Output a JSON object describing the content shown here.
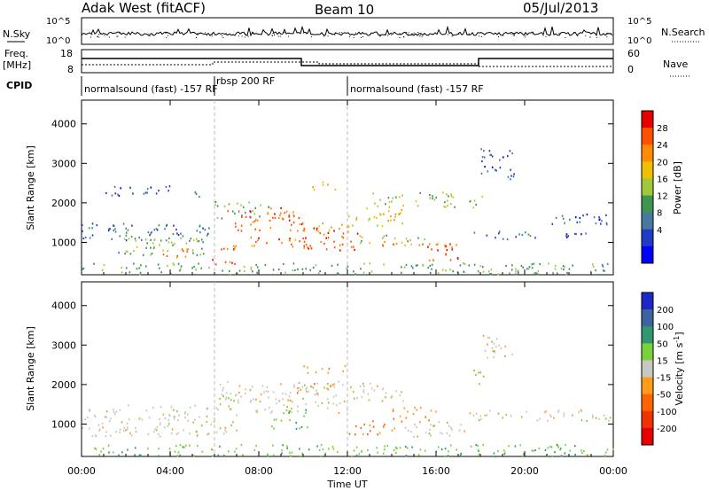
{
  "header": {
    "station": "Adak West (fitACF)",
    "beam": "Beam 10",
    "date": "05/Jul/2013"
  },
  "nsky_panel": {
    "left_label": "N.Sky",
    "left_ticks": [
      "10^5",
      "10^0"
    ],
    "right_ticks": [
      "10^5",
      "10^0"
    ],
    "right_label": "N.Search"
  },
  "freq_panel": {
    "left_label_1": "Freq.",
    "left_label_2": "[MHz]",
    "left_ticks": [
      "18",
      "8"
    ],
    "right_ticks": [
      "60",
      "0"
    ],
    "right_label": "Nave"
  },
  "cpid": {
    "label": "CPID",
    "segments": [
      {
        "text": "normalsound (fast) -157 RF",
        "start_hour": 0,
        "end_hour": 6
      },
      {
        "text": "rbsp 200 RF",
        "start_hour": 6,
        "end_hour": 12
      },
      {
        "text": "normalsound (fast) -157 RF",
        "start_hour": 12,
        "end_hour": 24
      }
    ]
  },
  "colorbars": {
    "power": {
      "label": "Power [dB]",
      "ticks": [
        "28",
        "24",
        "20",
        "16",
        "12",
        "8",
        "4"
      ],
      "colors": [
        "#e60000",
        "#ff5000",
        "#ff8c00",
        "#f0c000",
        "#a0c83c",
        "#3c9650",
        "#4678a0",
        "#1e3cc8",
        "#0000ff"
      ]
    },
    "velocity": {
      "label": "Velocity [m s^-1]",
      "ticks": [
        "200",
        "100",
        "50",
        "15",
        "-15",
        "-50",
        "-100",
        "-200"
      ],
      "colors": [
        "#1e28c8",
        "#3c64a0",
        "#32966e",
        "#78d23c",
        "#c8c8c0",
        "#ff9c1e",
        "#ff6400",
        "#f03200",
        "#e60000"
      ]
    }
  },
  "chart_data": [
    {
      "type": "heatmap",
      "name": "power",
      "ylabel": "Slant Range [km]",
      "x_unit": "hour UT",
      "ylim": [
        180,
        4600
      ],
      "yticks": [
        1000,
        2000,
        3000,
        4000
      ],
      "blobs": [
        {
          "h0": 0.0,
          "h1": 6.0,
          "r0": 1000,
          "r1": 1500,
          "p": 8
        },
        {
          "h0": 1.5,
          "h1": 5.5,
          "r0": 700,
          "r1": 1150,
          "p": 14
        },
        {
          "h0": 3.5,
          "h1": 4.8,
          "r0": 600,
          "r1": 950,
          "p": 26
        },
        {
          "h0": 5.8,
          "h1": 7.0,
          "r0": 450,
          "r1": 950,
          "p": 28
        },
        {
          "h0": 6.0,
          "h1": 8.5,
          "r0": 1600,
          "r1": 2050,
          "p": 14
        },
        {
          "h0": 6.5,
          "h1": 10.0,
          "r0": 1300,
          "r1": 1900,
          "p": 28
        },
        {
          "h0": 7.5,
          "h1": 10.5,
          "r0": 850,
          "r1": 1150,
          "p": 26
        },
        {
          "h0": 9.5,
          "h1": 12.0,
          "r0": 1300,
          "r1": 1550,
          "p": 24
        },
        {
          "h0": 10.0,
          "h1": 12.5,
          "r0": 800,
          "r1": 1400,
          "p": 28
        },
        {
          "h0": 10.2,
          "h1": 11.5,
          "r0": 2350,
          "r1": 2550,
          "p": 24
        },
        {
          "h0": 12.0,
          "h1": 14.5,
          "r0": 1400,
          "r1": 1900,
          "p": 20
        },
        {
          "h0": 13.0,
          "h1": 17.0,
          "r0": 1900,
          "r1": 2300,
          "p": 16
        },
        {
          "h0": 12.5,
          "h1": 15.5,
          "r0": 950,
          "r1": 1200,
          "p": 16
        },
        {
          "h0": 15.5,
          "h1": 17.2,
          "r0": 550,
          "r1": 950,
          "p": 28
        },
        {
          "h0": 13.0,
          "h1": 17.5,
          "r0": 900,
          "r1": 1050,
          "p": 24
        },
        {
          "h0": 17.5,
          "h1": 20.5,
          "r0": 1100,
          "r1": 1300,
          "p": 8
        },
        {
          "h0": 19.5,
          "h1": 23.5,
          "r0": 1150,
          "r1": 1250,
          "p": 5
        },
        {
          "h0": 20.5,
          "h1": 23.8,
          "r0": 1450,
          "r1": 1750,
          "p": 6
        },
        {
          "h0": 17.5,
          "h1": 18.2,
          "r0": 1900,
          "r1": 2300,
          "p": 14
        },
        {
          "h0": 18.0,
          "h1": 19.5,
          "r0": 2600,
          "r1": 3400,
          "p": 5
        },
        {
          "h0": 1.0,
          "h1": 4.0,
          "r0": 2200,
          "r1": 2500,
          "p": 6
        },
        {
          "h0": 5.0,
          "h1": 5.5,
          "r0": 2150,
          "r1": 2500,
          "p": 10
        },
        {
          "h0": 0.0,
          "h1": 24.0,
          "r0": 200,
          "r1": 500,
          "p": 12
        }
      ]
    },
    {
      "type": "heatmap",
      "name": "velocity",
      "ylabel": "Slant Range [km]",
      "xlabel": "Time UT",
      "x_unit": "hour UT",
      "xticks": [
        "00:00",
        "04:00",
        "08:00",
        "12:00",
        "16:00",
        "20:00",
        "00:00"
      ],
      "ylim": [
        180,
        4600
      ],
      "yticks": [
        1000,
        2000,
        3000,
        4000
      ],
      "blobs": [
        {
          "h0": 0.0,
          "h1": 7.0,
          "r0": 700,
          "r1": 1500,
          "v": 0
        },
        {
          "h0": 6.0,
          "h1": 12.0,
          "r0": 1300,
          "r1": 2100,
          "v": 0
        },
        {
          "h0": 8.5,
          "h1": 10.2,
          "r0": 900,
          "r1": 1400,
          "v": 40
        },
        {
          "h0": 10.0,
          "h1": 12.0,
          "r0": 2300,
          "r1": 2500,
          "v": -40
        },
        {
          "h0": 9.5,
          "h1": 11.5,
          "r0": 1800,
          "r1": 2050,
          "v": -40
        },
        {
          "h0": 12.0,
          "h1": 14.5,
          "r0": 1600,
          "r1": 2100,
          "v": 0
        },
        {
          "h0": 12.0,
          "h1": 14.5,
          "r0": 750,
          "r1": 1100,
          "v": -60
        },
        {
          "h0": 14.0,
          "h1": 16.0,
          "r0": 1050,
          "r1": 1450,
          "v": -40
        },
        {
          "h0": 14.5,
          "h1": 17.5,
          "r0": 700,
          "r1": 1100,
          "v": 0
        },
        {
          "h0": 17.5,
          "h1": 24.0,
          "r0": 1100,
          "r1": 1400,
          "v": 0
        },
        {
          "h0": 17.5,
          "h1": 18.2,
          "r0": 2000,
          "r1": 2400,
          "v": 40
        },
        {
          "h0": 18.0,
          "h1": 19.5,
          "r0": 2700,
          "r1": 3300,
          "v": 0
        },
        {
          "h0": 0.0,
          "h1": 24.0,
          "r0": 200,
          "r1": 500,
          "v": 40
        }
      ]
    }
  ]
}
